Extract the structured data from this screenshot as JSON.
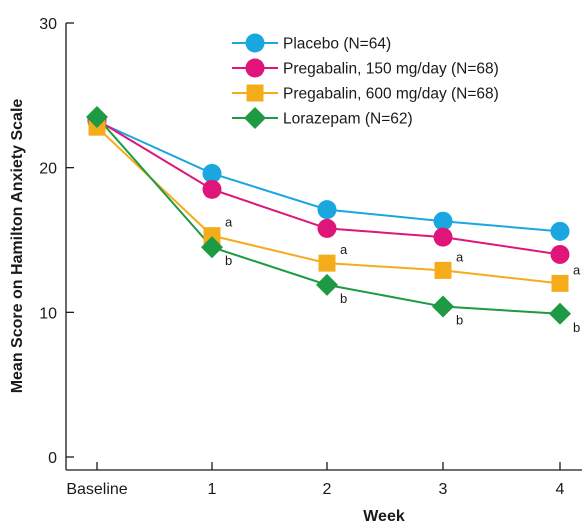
{
  "chart_data": {
    "type": "line",
    "categories": [
      "Baseline",
      "1",
      "2",
      "3",
      "4"
    ],
    "xlabel": "Week",
    "ylabel": "Mean Score on Hamilton Anxiety Scale",
    "ylim": [
      0,
      30
    ],
    "yticks": [
      "0",
      "10",
      "20",
      "30"
    ],
    "grid": false,
    "legend_position": "top-right",
    "series": [
      {
        "name": "Placebo (N=64)",
        "color": "#1aa7e0",
        "marker": "circle",
        "values": [
          23.2,
          19.6,
          17.1,
          16.3,
          15.6
        ],
        "annotations": [
          "",
          "",
          "",
          "",
          ""
        ]
      },
      {
        "name": "Pregabalin, 150 mg/day (N=68)",
        "color": "#e0157a",
        "marker": "circle",
        "values": [
          23.3,
          18.5,
          15.8,
          15.2,
          14.0
        ],
        "annotations": [
          "",
          "",
          "",
          "",
          ""
        ]
      },
      {
        "name": "Pregabalin, 600 mg/day (N=68)",
        "color": "#f5ac1a",
        "marker": "square",
        "values": [
          22.8,
          15.3,
          13.4,
          12.9,
          12.0
        ],
        "annotations": [
          "",
          "a",
          "a",
          "a",
          "a"
        ]
      },
      {
        "name": "Lorazepam (N=62)",
        "color": "#1e9a44",
        "marker": "diamond",
        "values": [
          23.5,
          14.5,
          11.9,
          10.4,
          9.9
        ],
        "annotations": [
          "",
          "b",
          "b",
          "b",
          "b"
        ]
      }
    ]
  }
}
